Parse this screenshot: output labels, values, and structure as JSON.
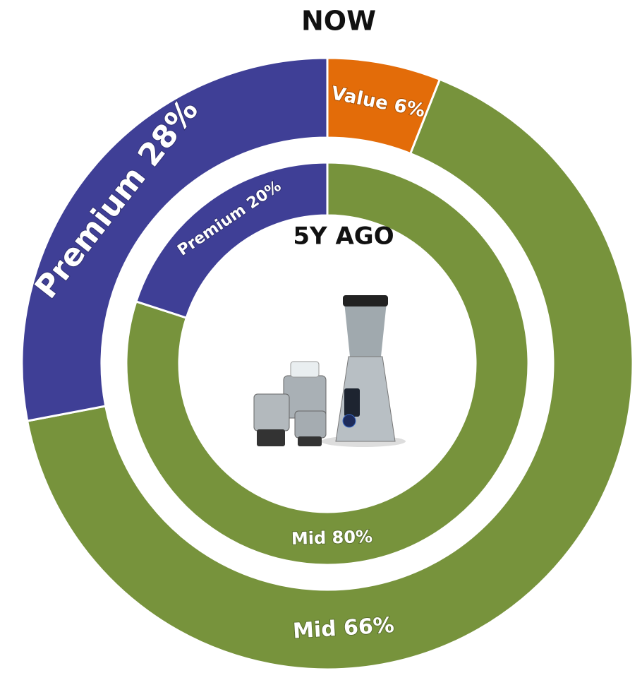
{
  "chart_data": [
    {
      "type": "donut",
      "title": "NOW",
      "values": [
        6,
        66,
        28
      ],
      "value_labels": [
        "Value 6%",
        "Mid 66%",
        "Premium 28%"
      ],
      "colors": [
        "#e36c09",
        "#77933c",
        "#3f3f96"
      ]
    },
    {
      "type": "donut",
      "title": "5Y AGO",
      "values": [
        80,
        20
      ],
      "value_labels": [
        "Mid 80%",
        "Premium 20%"
      ],
      "colors": [
        "#77933c",
        "#3f3f96"
      ]
    }
  ]
}
